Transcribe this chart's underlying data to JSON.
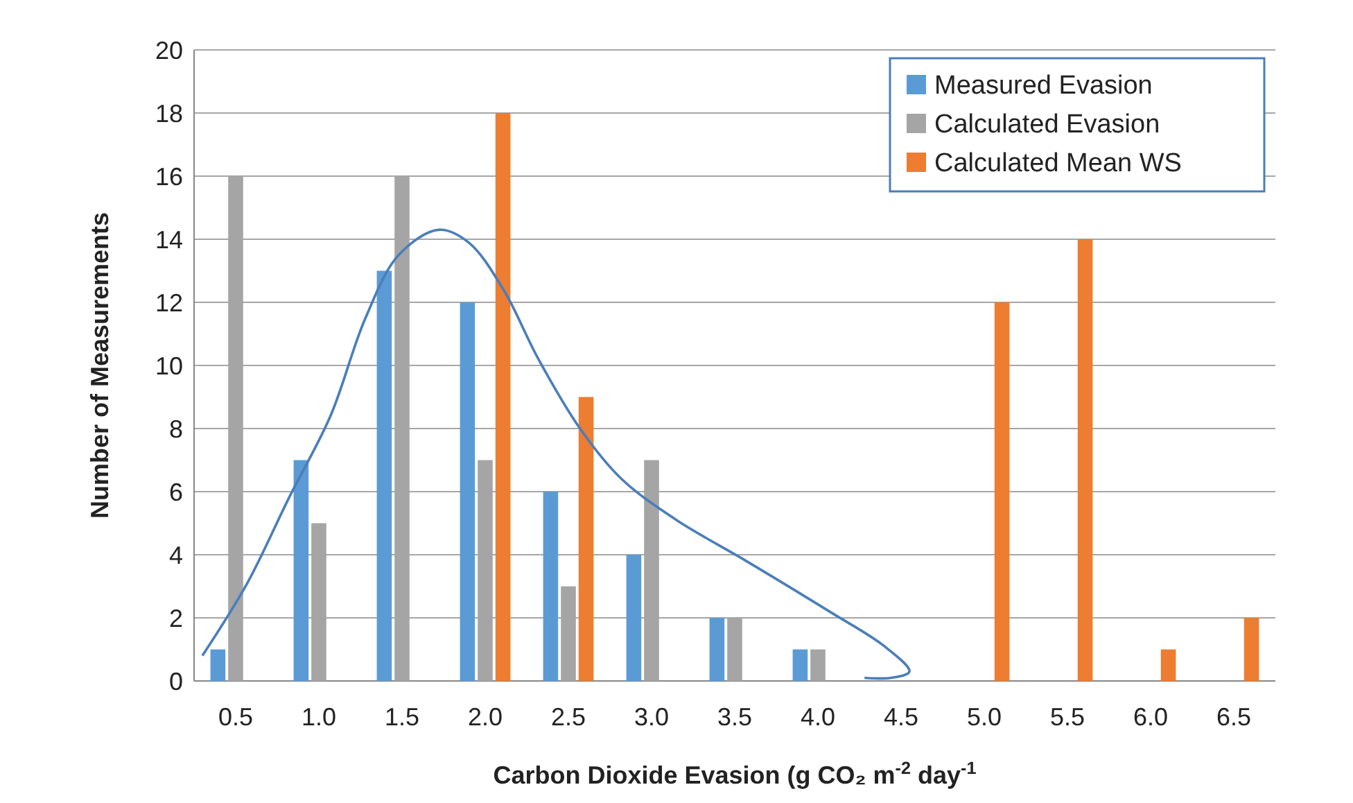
{
  "chart_data": {
    "type": "bar",
    "xlabel": "Carbon Dioxide Evasion  (g CO₂ m$^{-2}$ day$^{-1}$",
    "ylabel": "Number of Measurements",
    "x": [
      0.5,
      1,
      1.5,
      2,
      2.5,
      3,
      3.5,
      4,
      4.5,
      5,
      5.5,
      6,
      6.5
    ],
    "xlim": [
      0.25,
      6.75
    ],
    "xticks": [
      0.5,
      {
        "value": 1,
        "label": "1.0"
      },
      1.5,
      {
        "value": 2,
        "label": "2.0"
      },
      2.5,
      {
        "value": 3,
        "label": "3.0"
      },
      3.5,
      {
        "value": 4,
        "label": "4.0"
      },
      4.5,
      {
        "value": 5,
        "label": "5.0"
      },
      5.5,
      {
        "value": 6,
        "label": "6.0"
      },
      6.5
    ],
    "ylim": [
      0,
      20
    ],
    "yticks": [
      0,
      2,
      4,
      6,
      8,
      10,
      12,
      14,
      16,
      18,
      20
    ],
    "grid": "y",
    "legend": "top right",
    "series": [
      {
        "name": "Measured Evasion",
        "color": "#5b9bd5",
        "values": [
          1,
          7,
          13,
          12,
          6,
          4,
          2,
          1,
          0,
          0,
          0,
          0,
          0
        ]
      },
      {
        "name": "Calculated Evasion",
        "color": "#a5a5a5",
        "values": [
          16,
          5,
          16,
          7,
          3,
          7,
          2,
          1,
          0,
          0,
          0,
          0,
          0
        ]
      },
      {
        "name": "Calculated Mean WS",
        "color": "#ed7d31",
        "values": [
          0,
          0,
          0,
          18,
          9,
          0,
          0,
          0,
          0,
          12,
          14,
          1,
          2
        ]
      },
      {
        "type": "line",
        "color": "#4a7ebb",
        "x": [
          0.3,
          0.57,
          0.82,
          1.07,
          1.28,
          1.48,
          1.72,
          1.9,
          2.11,
          2.32,
          2.57,
          2.82,
          3.15,
          3.57,
          4.07,
          4.4,
          4.55,
          4.44,
          4.28
        ],
        "values": [
          0.8,
          3.1,
          5.8,
          8.4,
          11.5,
          13.5,
          14.3,
          13.9,
          12.4,
          10.2,
          8,
          6.4,
          5.1,
          3.8,
          2.2,
          1.1,
          0.3,
          0.1,
          0.1
        ]
      }
    ]
  }
}
